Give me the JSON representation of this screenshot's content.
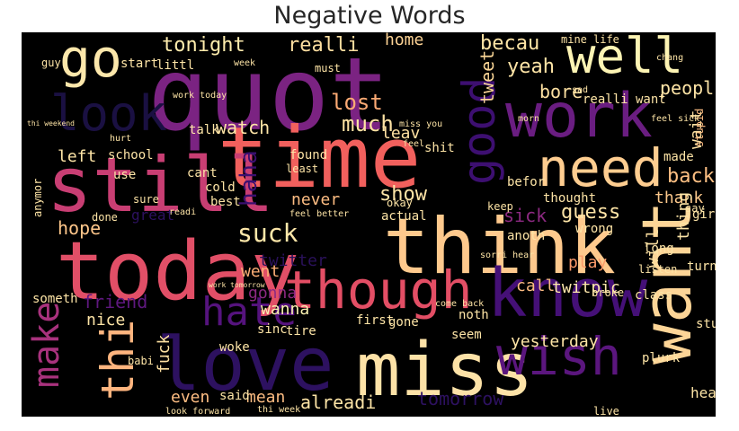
{
  "chart_data": {
    "type": "wordcloud",
    "title": "Negative Words",
    "background": "#000000",
    "colormap": "magma",
    "words": [
      {
        "text": "quot",
        "color": "#7b2382"
      },
      {
        "text": "time",
        "color": "#f1605d"
      },
      {
        "text": "still",
        "color": "#c83e73"
      },
      {
        "text": "today",
        "color": "#e14f67"
      },
      {
        "text": "think",
        "color": "#fec98d"
      },
      {
        "text": "love",
        "color": "#2d1160"
      },
      {
        "text": "miss",
        "color": "#fde2a7"
      },
      {
        "text": "work",
        "color": "#6a1d81"
      },
      {
        "text": "know",
        "color": "#451077"
      },
      {
        "text": "want",
        "color": "#fdd597"
      },
      {
        "text": "though",
        "color": "#e34e65"
      },
      {
        "text": "need",
        "color": "#fecd90"
      },
      {
        "text": "well",
        "color": "#fdf4b4"
      },
      {
        "text": "go",
        "color": "#fce7ab"
      },
      {
        "text": "wish",
        "color": "#5b167e"
      },
      {
        "text": "good",
        "color": "#3d0f71"
      },
      {
        "text": "look",
        "color": "#1a1042"
      },
      {
        "text": "make",
        "color": "#a8327d"
      },
      {
        "text": "thi",
        "color": "#feb57f"
      },
      {
        "text": "hate",
        "color": "#55137d"
      },
      {
        "text": "suck",
        "color": "#fde7a9"
      },
      {
        "text": "tonight",
        "color": "#fdebac"
      },
      {
        "text": "realli",
        "color": "#fddea0"
      },
      {
        "text": "home",
        "color": "#fed395"
      },
      {
        "text": "becau",
        "color": "#fee5a6"
      },
      {
        "text": "lost",
        "color": "#fcaa74"
      },
      {
        "text": "much",
        "color": "#fde2a3"
      },
      {
        "text": "watch",
        "color": "#fde4a6"
      },
      {
        "text": "yeah",
        "color": "#fde4a6"
      },
      {
        "text": "show",
        "color": "#fde4a6"
      },
      {
        "text": "guess",
        "color": "#fde4a6"
      },
      {
        "text": "back",
        "color": "#fcbf83"
      },
      {
        "text": "thank",
        "color": "#fcc88b"
      },
      {
        "text": "haha",
        "color": "#3b0f70"
      },
      {
        "text": "sick",
        "color": "#8c2981"
      },
      {
        "text": "hope",
        "color": "#fec68a"
      },
      {
        "text": "friend",
        "color": "#5f187f"
      },
      {
        "text": "twitter",
        "color": "#2a115a"
      },
      {
        "text": "went",
        "color": "#fcae76"
      },
      {
        "text": "gonna",
        "color": "#8c2981"
      },
      {
        "text": "wanna",
        "color": "#f9f0b0"
      },
      {
        "text": "call",
        "color": "#fcbc82"
      },
      {
        "text": "play",
        "color": "#fb9a6a"
      },
      {
        "text": "tweet",
        "color": "#f9d596"
      },
      {
        "text": "wait",
        "color": "#fde0a1"
      },
      {
        "text": "peopl",
        "color": "#fde4a6"
      },
      {
        "text": "twitpic",
        "color": "#fee8ab"
      },
      {
        "text": "bore",
        "color": "#fde0a1"
      },
      {
        "text": "leav",
        "color": "#fde0a1"
      },
      {
        "text": "left",
        "color": "#fde4a6"
      },
      {
        "text": "never",
        "color": "#fcbc82"
      },
      {
        "text": "nice",
        "color": "#fde4a6"
      },
      {
        "text": "fuck",
        "color": "#fde0a1"
      },
      {
        "text": "even",
        "color": "#fcbc82"
      },
      {
        "text": "mean",
        "color": "#fcbc82"
      },
      {
        "text": "alreadi",
        "color": "#fde4a6"
      },
      {
        "text": "tomorrow",
        "color": "#2d1160"
      },
      {
        "text": "yesterday",
        "color": "#fde4a6"
      },
      {
        "text": "thing",
        "color": "#fde4a6"
      },
      {
        "text": "will",
        "color": "#fde0a1"
      },
      {
        "text": "head",
        "color": "#fde4a6"
      },
      {
        "text": "stupid",
        "color": "#fcbc82"
      },
      {
        "text": "girl",
        "color": "#fde4a6"
      },
      {
        "text": "made",
        "color": "#fde4a6"
      },
      {
        "text": "noth",
        "color": "#fde4a6"
      },
      {
        "text": "seem",
        "color": "#fde4a6"
      },
      {
        "text": "someth",
        "color": "#fde4a6"
      },
      {
        "text": "great",
        "color": "#2d1160"
      },
      {
        "text": "found",
        "color": "#fde4a6"
      },
      {
        "text": "least",
        "color": "#fde4a6"
      },
      {
        "text": "tire",
        "color": "#fde4a6"
      },
      {
        "text": "woke",
        "color": "#fde4a6"
      },
      {
        "text": "said",
        "color": "#fde4a6"
      },
      {
        "text": "babi",
        "color": "#fde4a6"
      },
      {
        "text": "gone",
        "color": "#fde4a6"
      },
      {
        "text": "first",
        "color": "#fde4a6"
      },
      {
        "text": "sinc",
        "color": "#fde4a6"
      },
      {
        "text": "cant",
        "color": "#fde4a6"
      },
      {
        "text": "cold",
        "color": "#fde4a6"
      },
      {
        "text": "best",
        "color": "#fde4a6"
      },
      {
        "text": "shit",
        "color": "#fde4a6"
      },
      {
        "text": "school",
        "color": "#fde4a6"
      },
      {
        "text": "talk",
        "color": "#fde4a6"
      },
      {
        "text": "use",
        "color": "#fde4a6"
      },
      {
        "text": "start",
        "color": "#fde4a6"
      },
      {
        "text": "littl",
        "color": "#fde4a6"
      },
      {
        "text": "guy",
        "color": "#fde4a6"
      },
      {
        "text": "must",
        "color": "#fde4a6"
      },
      {
        "text": "thought",
        "color": "#fde4a6"
      },
      {
        "text": "actual",
        "color": "#fde4a6"
      },
      {
        "text": "anoth",
        "color": "#fde4a6"
      },
      {
        "text": "wrong",
        "color": "#fde4a6"
      },
      {
        "text": "long",
        "color": "#fde4a6"
      },
      {
        "text": "turn",
        "color": "#fde4a6"
      },
      {
        "text": "listen",
        "color": "#fde4a6"
      },
      {
        "text": "class",
        "color": "#fde4a6"
      },
      {
        "text": "broke",
        "color": "#fde4a6"
      },
      {
        "text": "stuff",
        "color": "#fde4a6"
      },
      {
        "text": "plurk",
        "color": "#fde4a6"
      },
      {
        "text": "live",
        "color": "#fde4a6"
      },
      {
        "text": "okay",
        "color": "#fde4a6"
      },
      {
        "text": "keep",
        "color": "#fde4a6"
      },
      {
        "text": "befor",
        "color": "#fde4a6"
      },
      {
        "text": "done",
        "color": "#fde4a6"
      },
      {
        "text": "anymor",
        "color": "#fde4a6"
      },
      {
        "text": "say",
        "color": "#fde4a6"
      },
      {
        "text": "hurt",
        "color": "#fde4a6"
      },
      {
        "text": "life",
        "color": "#fde4a6"
      },
      {
        "text": "mine",
        "color": "#fde4a6"
      },
      {
        "text": "chang",
        "color": "#fde4a6"
      },
      {
        "text": "week",
        "color": "#fde4a6"
      },
      {
        "text": "morn",
        "color": "#fde4a6"
      },
      {
        "text": "sad",
        "color": "#fde4a6"
      },
      {
        "text": "readi",
        "color": "#fde4a6"
      },
      {
        "text": "sure",
        "color": "#fde4a6"
      },
      {
        "text": "feel",
        "color": "#fde4a6"
      },
      {
        "text": "miss you",
        "color": "#fde4a6"
      },
      {
        "text": "work today",
        "color": "#fde4a6"
      },
      {
        "text": "feel sick",
        "color": "#fde4a6"
      },
      {
        "text": "realli want",
        "color": "#fde4a6"
      },
      {
        "text": "feel better",
        "color": "#fde4a6"
      },
      {
        "text": "sorri hear",
        "color": "#fde4a6"
      },
      {
        "text": "come back",
        "color": "#fde4a6"
      },
      {
        "text": "look forward",
        "color": "#fde4a6"
      },
      {
        "text": "thi week",
        "color": "#fde4a6"
      },
      {
        "text": "work tomorrow",
        "color": "#fde4a6"
      },
      {
        "text": "thi weekend",
        "color": "#fde4a6"
      }
    ]
  }
}
